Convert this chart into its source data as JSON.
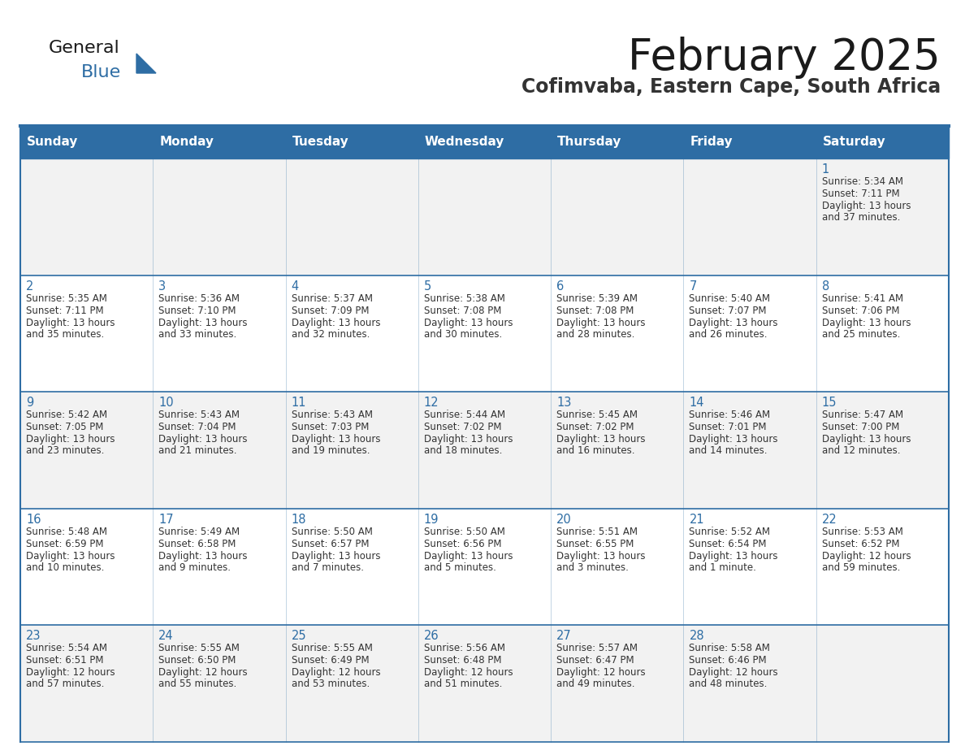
{
  "title": "February 2025",
  "subtitle": "Cofimvaba, Eastern Cape, South Africa",
  "header_bg": "#2E6DA4",
  "header_text_color": "#FFFFFF",
  "cell_bg_odd": "#F2F2F2",
  "cell_bg_even": "#FFFFFF",
  "day_headers": [
    "Sunday",
    "Monday",
    "Tuesday",
    "Wednesday",
    "Thursday",
    "Friday",
    "Saturday"
  ],
  "title_color": "#1a1a1a",
  "subtitle_color": "#333333",
  "border_color": "#2E6DA4",
  "day_number_color": "#2E6DA4",
  "cell_text_color": "#333333",
  "logo_general_color": "#1a1a1a",
  "logo_blue_color": "#2E6DA4",
  "logo_triangle_color": "#2E6DA4",
  "calendar_data": [
    [
      null,
      null,
      null,
      null,
      null,
      null,
      {
        "day": 1,
        "sunrise": "5:34 AM",
        "sunset": "7:11 PM",
        "daylight": "13 hours and 37 minutes."
      }
    ],
    [
      {
        "day": 2,
        "sunrise": "5:35 AM",
        "sunset": "7:11 PM",
        "daylight": "13 hours and 35 minutes."
      },
      {
        "day": 3,
        "sunrise": "5:36 AM",
        "sunset": "7:10 PM",
        "daylight": "13 hours and 33 minutes."
      },
      {
        "day": 4,
        "sunrise": "5:37 AM",
        "sunset": "7:09 PM",
        "daylight": "13 hours and 32 minutes."
      },
      {
        "day": 5,
        "sunrise": "5:38 AM",
        "sunset": "7:08 PM",
        "daylight": "13 hours and 30 minutes."
      },
      {
        "day": 6,
        "sunrise": "5:39 AM",
        "sunset": "7:08 PM",
        "daylight": "13 hours and 28 minutes."
      },
      {
        "day": 7,
        "sunrise": "5:40 AM",
        "sunset": "7:07 PM",
        "daylight": "13 hours and 26 minutes."
      },
      {
        "day": 8,
        "sunrise": "5:41 AM",
        "sunset": "7:06 PM",
        "daylight": "13 hours and 25 minutes."
      }
    ],
    [
      {
        "day": 9,
        "sunrise": "5:42 AM",
        "sunset": "7:05 PM",
        "daylight": "13 hours and 23 minutes."
      },
      {
        "day": 10,
        "sunrise": "5:43 AM",
        "sunset": "7:04 PM",
        "daylight": "13 hours and 21 minutes."
      },
      {
        "day": 11,
        "sunrise": "5:43 AM",
        "sunset": "7:03 PM",
        "daylight": "13 hours and 19 minutes."
      },
      {
        "day": 12,
        "sunrise": "5:44 AM",
        "sunset": "7:02 PM",
        "daylight": "13 hours and 18 minutes."
      },
      {
        "day": 13,
        "sunrise": "5:45 AM",
        "sunset": "7:02 PM",
        "daylight": "13 hours and 16 minutes."
      },
      {
        "day": 14,
        "sunrise": "5:46 AM",
        "sunset": "7:01 PM",
        "daylight": "13 hours and 14 minutes."
      },
      {
        "day": 15,
        "sunrise": "5:47 AM",
        "sunset": "7:00 PM",
        "daylight": "13 hours and 12 minutes."
      }
    ],
    [
      {
        "day": 16,
        "sunrise": "5:48 AM",
        "sunset": "6:59 PM",
        "daylight": "13 hours and 10 minutes."
      },
      {
        "day": 17,
        "sunrise": "5:49 AM",
        "sunset": "6:58 PM",
        "daylight": "13 hours and 9 minutes."
      },
      {
        "day": 18,
        "sunrise": "5:50 AM",
        "sunset": "6:57 PM",
        "daylight": "13 hours and 7 minutes."
      },
      {
        "day": 19,
        "sunrise": "5:50 AM",
        "sunset": "6:56 PM",
        "daylight": "13 hours and 5 minutes."
      },
      {
        "day": 20,
        "sunrise": "5:51 AM",
        "sunset": "6:55 PM",
        "daylight": "13 hours and 3 minutes."
      },
      {
        "day": 21,
        "sunrise": "5:52 AM",
        "sunset": "6:54 PM",
        "daylight": "13 hours and 1 minute."
      },
      {
        "day": 22,
        "sunrise": "5:53 AM",
        "sunset": "6:52 PM",
        "daylight": "12 hours and 59 minutes."
      }
    ],
    [
      {
        "day": 23,
        "sunrise": "5:54 AM",
        "sunset": "6:51 PM",
        "daylight": "12 hours and 57 minutes."
      },
      {
        "day": 24,
        "sunrise": "5:55 AM",
        "sunset": "6:50 PM",
        "daylight": "12 hours and 55 minutes."
      },
      {
        "day": 25,
        "sunrise": "5:55 AM",
        "sunset": "6:49 PM",
        "daylight": "12 hours and 53 minutes."
      },
      {
        "day": 26,
        "sunrise": "5:56 AM",
        "sunset": "6:48 PM",
        "daylight": "12 hours and 51 minutes."
      },
      {
        "day": 27,
        "sunrise": "5:57 AM",
        "sunset": "6:47 PM",
        "daylight": "12 hours and 49 minutes."
      },
      {
        "day": 28,
        "sunrise": "5:58 AM",
        "sunset": "6:46 PM",
        "daylight": "12 hours and 48 minutes."
      },
      null
    ]
  ]
}
